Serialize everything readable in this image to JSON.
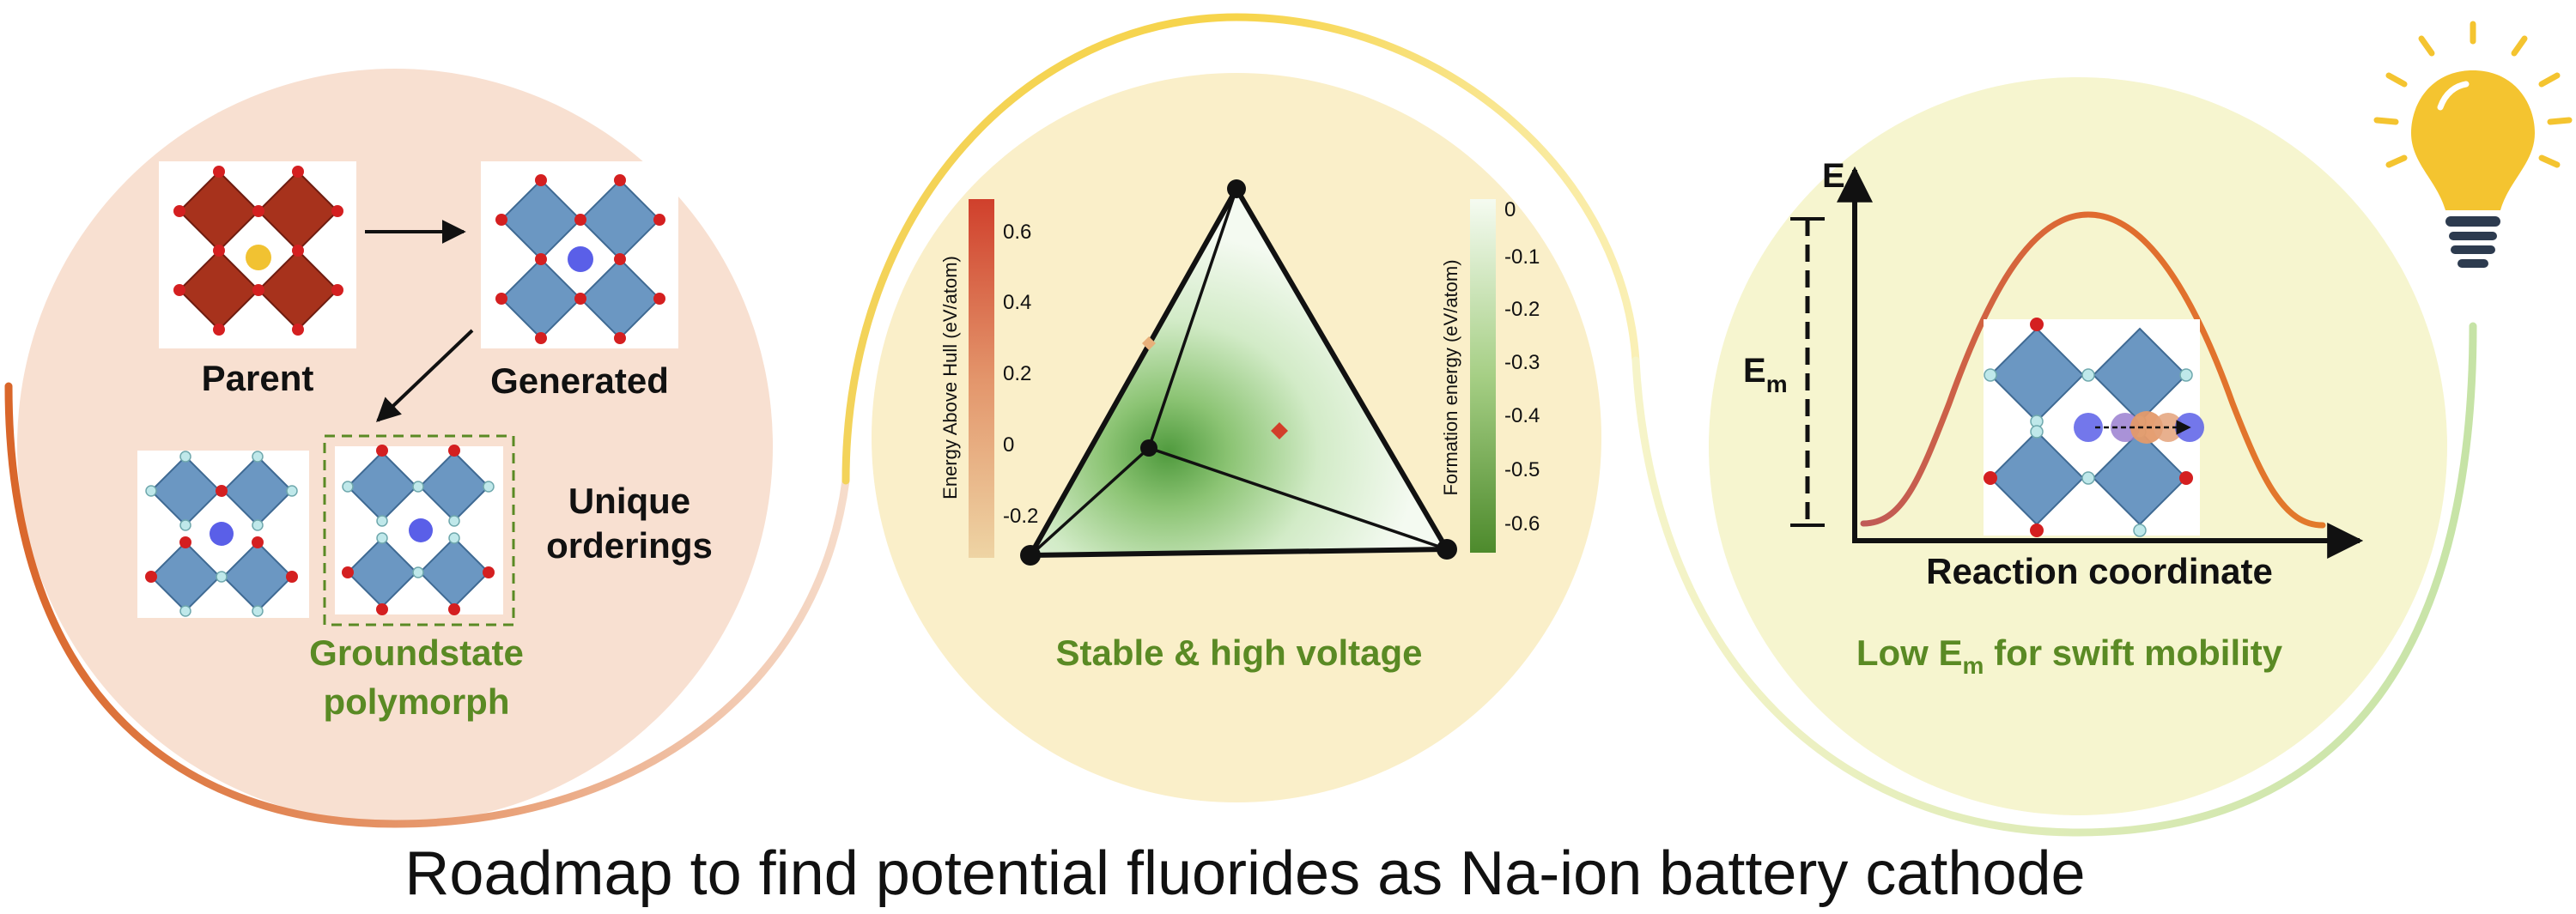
{
  "panel1": {
    "parent_label": "Parent",
    "generated_label": "Generated",
    "unique_line1": "Unique",
    "unique_line2": "orderings",
    "caption_line1": "Groundstate",
    "caption_line2": "polymorph"
  },
  "panel2": {
    "colorbar_left": {
      "label": "Energy Above Hull (eV/atom)",
      "ticks": [
        "0.6",
        "0.4",
        "0.2",
        "0",
        "-0.2"
      ]
    },
    "colorbar_right": {
      "label": "Formation energy (eV/atom)",
      "ticks": [
        "0",
        "-0.1",
        "-0.2",
        "-0.3",
        "-0.4",
        "-0.5",
        "-0.6"
      ]
    },
    "caption": "Stable & high voltage"
  },
  "panel3": {
    "y_axis": "E",
    "x_axis": "Reaction coordinate",
    "barrier_main": "E",
    "barrier_sub": "m",
    "caption_pre": "Low E",
    "caption_sub": "m",
    "caption_post": " for swift mobility"
  },
  "title": "Roadmap to find potential fluorides as Na-ion battery cathode",
  "colors": {
    "panel1_bg": "#f8e0d1",
    "panel2_bg": "#faefc9",
    "panel3_bg": "#f6f5cf",
    "caption_green": "#5a8a24",
    "parent_octa": "#a7321c",
    "generated_octa": "#6b97c2",
    "oxygen": "#c8202a",
    "fluorine": "#bfe8ea",
    "sodium": "#5a5fe8",
    "parent_ion": "#f1c232",
    "bulb": "#f4c430"
  }
}
